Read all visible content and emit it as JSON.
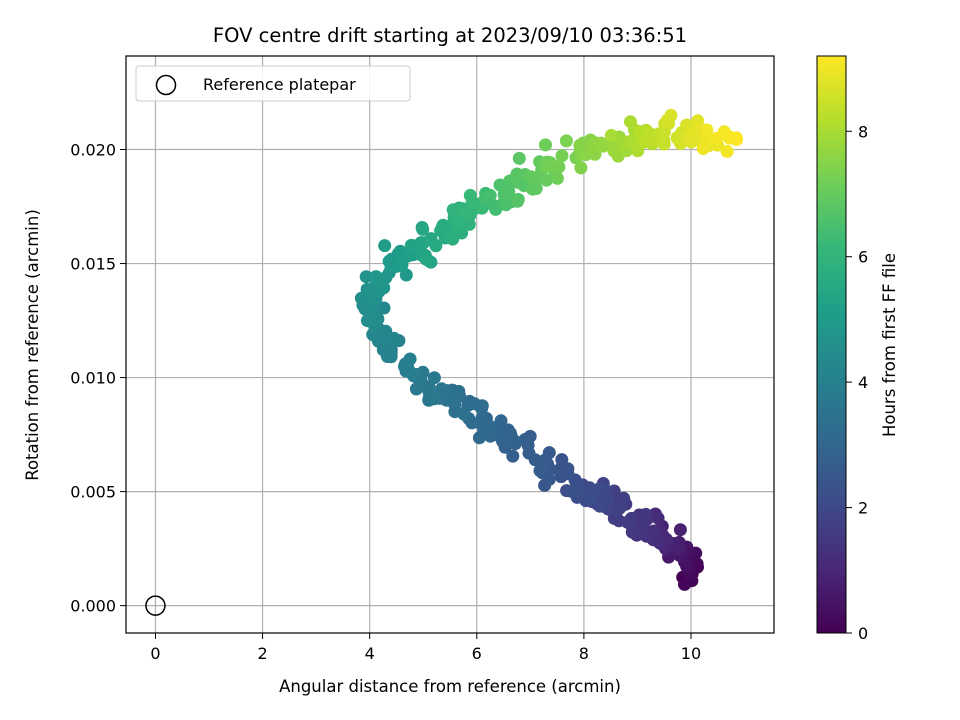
{
  "chart_data": {
    "type": "scatter",
    "title": "FOV centre drift starting at 2023/09/10 03:36:51",
    "xlabel": "Angular distance from reference (arcmin)",
    "ylabel": "Rotation from reference (arcmin)",
    "xlim": [
      -0.55,
      11.55
    ],
    "ylim": [
      -0.0012,
      0.0241
    ],
    "xticks": [
      0,
      2,
      4,
      6,
      8,
      10
    ],
    "xtick_labels": [
      "0",
      "2",
      "4",
      "6",
      "8",
      "10"
    ],
    "yticks": [
      0,
      0.005,
      0.01,
      0.015,
      0.02
    ],
    "ytick_labels": [
      "0.000",
      "0.005",
      "0.010",
      "0.015",
      "0.020"
    ],
    "grid": true,
    "legend": {
      "position": "top-left",
      "entries": [
        "Reference platepar"
      ]
    },
    "colorbar": {
      "label": "Hours from first FF file",
      "colormap": "viridis",
      "range": [
        0,
        9.2
      ],
      "ticks": [
        0,
        2,
        4,
        6,
        8
      ],
      "tick_labels": [
        "0",
        "2",
        "4",
        "6",
        "8"
      ]
    },
    "reference_point": {
      "x": 0,
      "y": 0
    },
    "anchors": [
      {
        "x": 10.0,
        "y": 0.0012,
        "hours": 0.0
      },
      {
        "x": 9.8,
        "y": 0.0025,
        "hours": 0.6
      },
      {
        "x": 9.4,
        "y": 0.0032,
        "hours": 1.1
      },
      {
        "x": 8.8,
        "y": 0.0038,
        "hours": 1.6
      },
      {
        "x": 8.2,
        "y": 0.0048,
        "hours": 2.0
      },
      {
        "x": 7.5,
        "y": 0.0058,
        "hours": 2.4
      },
      {
        "x": 6.8,
        "y": 0.0072,
        "hours": 2.8
      },
      {
        "x": 6.1,
        "y": 0.0082,
        "hours": 3.15
      },
      {
        "x": 5.4,
        "y": 0.0092,
        "hours": 3.5
      },
      {
        "x": 4.7,
        "y": 0.0103,
        "hours": 3.85
      },
      {
        "x": 4.2,
        "y": 0.0118,
        "hours": 4.2
      },
      {
        "x": 4.0,
        "y": 0.0135,
        "hours": 4.55
      },
      {
        "x": 4.4,
        "y": 0.015,
        "hours": 4.95
      },
      {
        "x": 5.0,
        "y": 0.0158,
        "hours": 5.35
      },
      {
        "x": 5.6,
        "y": 0.0168,
        "hours": 5.8
      },
      {
        "x": 6.2,
        "y": 0.0177,
        "hours": 6.3
      },
      {
        "x": 6.9,
        "y": 0.0188,
        "hours": 6.8
      },
      {
        "x": 7.7,
        "y": 0.0198,
        "hours": 7.3
      },
      {
        "x": 8.5,
        "y": 0.0204,
        "hours": 7.8
      },
      {
        "x": 9.3,
        "y": 0.0208,
        "hours": 8.3
      },
      {
        "x": 10.0,
        "y": 0.0207,
        "hours": 8.75
      },
      {
        "x": 10.8,
        "y": 0.0205,
        "hours": 9.2
      }
    ],
    "n_points": 420
  }
}
